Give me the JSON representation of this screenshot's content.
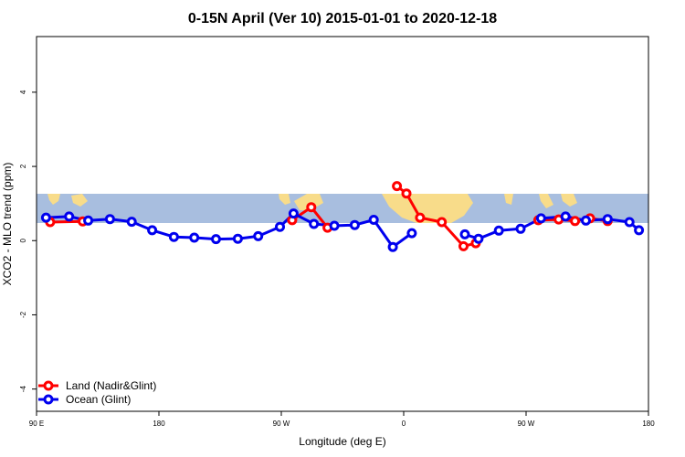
{
  "chart_data": {
    "type": "line",
    "title": "0-15N April (Ver 10)   2015-01-01 to 2020-12-18",
    "xlabel": "Longitude (deg E)",
    "ylabel": "XCO2 - MLO trend (ppm)",
    "xlim": [
      90,
      540
    ],
    "ylim": [
      -4.6,
      5.5
    ],
    "x_ticks": [
      {
        "value": 90,
        "label": "90 E"
      },
      {
        "value": 180,
        "label": "180"
      },
      {
        "value": 270,
        "label": "90 W"
      },
      {
        "value": 360,
        "label": "0"
      },
      {
        "value": 450,
        "label": "90 W"
      },
      {
        "value": 540,
        "label": "180"
      }
    ],
    "y_ticks": [
      {
        "value": -4,
        "label": "-4"
      },
      {
        "value": -2,
        "label": "-2"
      },
      {
        "value": 0,
        "label": "0"
      },
      {
        "value": 2,
        "label": "2"
      },
      {
        "value": 4,
        "label": "4"
      }
    ],
    "grid": false,
    "legend_position": "bottom-left",
    "map_band": {
      "lat_range": [
        0,
        15
      ],
      "y_range": [
        0.5,
        1.3
      ],
      "ocean_color": "#a8bedf",
      "land_color": "#f8dc8a"
    },
    "series": [
      {
        "name": "Land (Nadir&Glint)",
        "color": "#ff0000",
        "segments": [
          [
            [
              100,
              0.5
            ],
            [
              124,
              0.52
            ]
          ],
          [
            [
              278,
              0.55
            ],
            [
              292,
              0.9
            ],
            [
              304,
              0.35
            ]
          ],
          [
            [
              355,
              1.47
            ],
            [
              362,
              1.27
            ],
            [
              372,
              0.62
            ],
            [
              388,
              0.5
            ],
            [
              404,
              -0.15
            ],
            [
              413,
              -0.07
            ]
          ],
          [
            [
              459,
              0.55
            ],
            [
              474,
              0.57
            ],
            [
              486,
              0.53
            ],
            [
              497,
              0.6
            ],
            [
              510,
              0.53
            ]
          ]
        ]
      },
      {
        "name": "Ocean (Glint)",
        "color": "#0000ee",
        "segments": [
          [
            [
              97,
              0.62
            ],
            [
              114,
              0.65
            ],
            [
              128,
              0.54
            ],
            [
              144,
              0.58
            ],
            [
              160,
              0.51
            ],
            [
              175,
              0.28
            ],
            [
              191,
              0.1
            ],
            [
              206,
              0.08
            ],
            [
              222,
              0.04
            ],
            [
              238,
              0.05
            ],
            [
              253,
              0.12
            ],
            [
              269,
              0.37
            ],
            [
              279,
              0.73
            ],
            [
              294,
              0.45
            ],
            [
              309,
              0.4
            ],
            [
              324,
              0.42
            ],
            [
              338,
              0.56
            ],
            [
              352,
              -0.17
            ],
            [
              366,
              0.2
            ]
          ],
          [
            [
              405,
              0.17
            ],
            [
              415,
              0.05
            ],
            [
              430,
              0.27
            ],
            [
              446,
              0.32
            ],
            [
              461,
              0.6
            ],
            [
              479,
              0.65
            ],
            [
              494,
              0.54
            ],
            [
              510,
              0.58
            ],
            [
              526,
              0.5
            ],
            [
              533,
              0.28
            ]
          ]
        ]
      }
    ]
  }
}
